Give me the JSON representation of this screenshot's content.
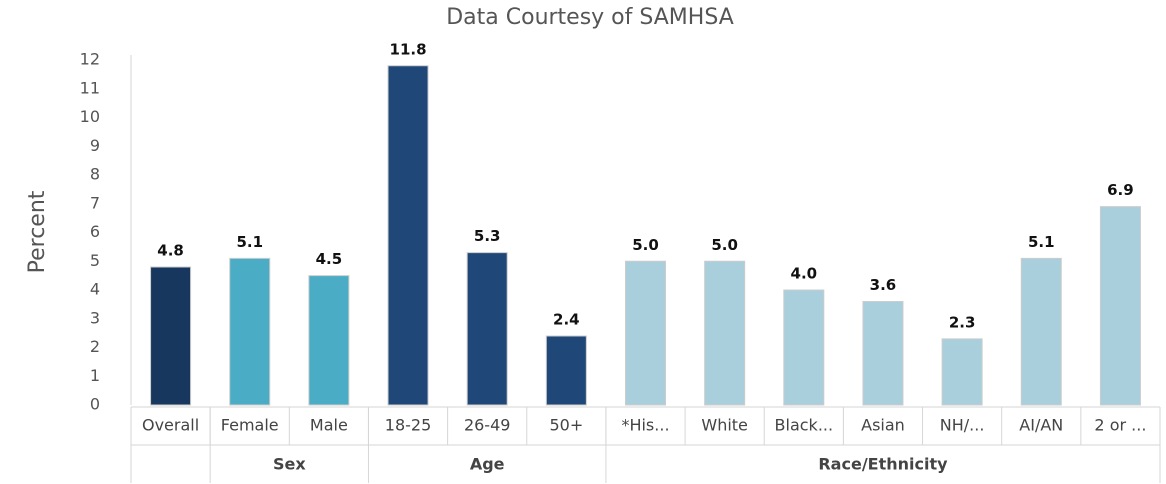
{
  "chart_data": {
    "type": "bar",
    "title": "Data Courtesy of SAMHSA",
    "y_label": "Percent",
    "categories": [
      "Overall",
      "Female",
      "Male",
      "18-25",
      "26-49",
      "50+",
      "*His...",
      "White",
      "Black...",
      "Asian",
      "NH/...",
      "AI/AN",
      "2 or ..."
    ],
    "values": [
      4.8,
      5.1,
      4.5,
      11.8,
      5.3,
      2.4,
      5.0,
      5.0,
      4.0,
      3.6,
      2.3,
      5.1,
      6.9
    ],
    "value_labels": [
      "4.8",
      "5.1",
      "4.5",
      "11.8",
      "5.3",
      "2.4",
      "5.0",
      "5.0",
      "4.0",
      "3.6",
      "2.3",
      "5.1",
      "6.9"
    ],
    "groups": [
      {
        "name": null,
        "size": 1,
        "color": "#17375e"
      },
      {
        "name": "Sex",
        "size": 2,
        "color": "#4bacc6"
      },
      {
        "name": "Age",
        "size": 3,
        "color": "#1f4777"
      },
      {
        "name": "Race/Ethnicity",
        "size": 7,
        "color": "#a9cfdc"
      }
    ],
    "ylim": [
      0,
      12
    ],
    "yticks": [
      0,
      1,
      2,
      3,
      4,
      5,
      6,
      7,
      8,
      9,
      10,
      11,
      12
    ],
    "grid": false
  }
}
